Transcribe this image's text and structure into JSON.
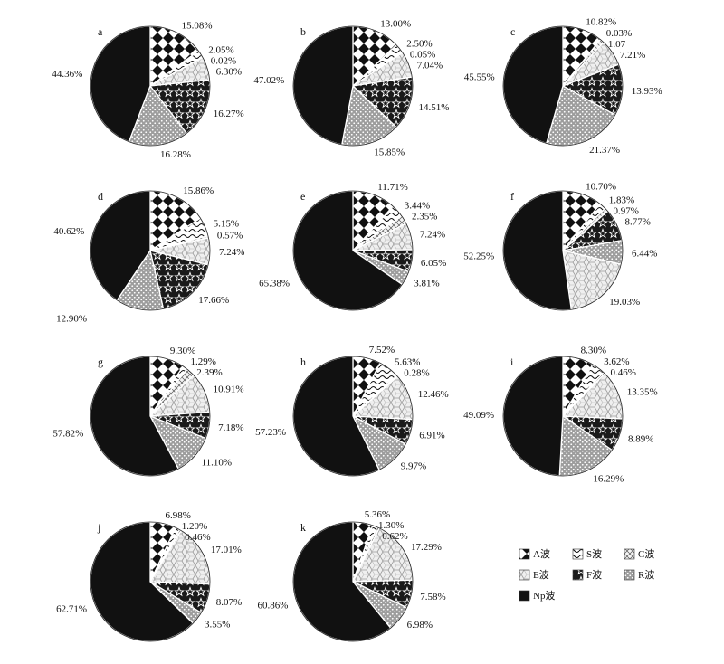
{
  "chart_data": [
    {
      "type": "pie",
      "panel": "a",
      "categories": [
        "A波",
        "S波",
        "C波",
        "E波",
        "F波",
        "R波",
        "Np波"
      ],
      "values": [
        15.08,
        2.05,
        0.02,
        6.3,
        16.27,
        16.28,
        44.36
      ],
      "labels": [
        "15.08%",
        "2.05%",
        "0.02%",
        "6.30%",
        "16.27%",
        "16.28%",
        "44.36%"
      ]
    },
    {
      "type": "pie",
      "panel": "b",
      "categories": [
        "A波",
        "S波",
        "C波",
        "E波",
        "F波",
        "R波",
        "Np波"
      ],
      "values": [
        13.0,
        2.5,
        0.05,
        7.04,
        14.51,
        15.85,
        47.02
      ],
      "labels": [
        "13.00%",
        "2.50%",
        "0.05%",
        "7.04%",
        "14.51%",
        "15.85%",
        "47.02%"
      ]
    },
    {
      "type": "pie",
      "panel": "c",
      "categories": [
        "A波",
        "S波",
        "C波",
        "E波",
        "F波",
        "R波",
        "Np波"
      ],
      "values": [
        10.82,
        0.03,
        1.07,
        7.21,
        13.93,
        21.37,
        45.55
      ],
      "labels": [
        "10.82%",
        "0.03%",
        "1.07",
        "7.21%",
        "13.93%",
        "21.37%",
        "45.55%"
      ]
    },
    {
      "type": "pie",
      "panel": "d",
      "categories": [
        "A波",
        "S波",
        "C波",
        "E波",
        "F波",
        "R波",
        "Np波"
      ],
      "values": [
        15.86,
        5.15,
        0.57,
        7.24,
        17.66,
        12.9,
        40.62
      ],
      "labels": [
        "15.86%",
        "5.15%",
        "0.57%",
        "7.24%",
        "17.66%",
        "12.90%",
        "40.62%"
      ]
    },
    {
      "type": "pie",
      "panel": "e",
      "categories": [
        "A波",
        "S波",
        "C波",
        "E波",
        "F波",
        "R波",
        "Np波"
      ],
      "values": [
        11.71,
        3.44,
        2.35,
        7.24,
        6.05,
        3.81,
        65.38
      ],
      "labels": [
        "11.71%",
        "3.44%",
        "2.35%",
        "7.24%",
        "6.05%",
        "3.81%",
        "65.38%"
      ]
    },
    {
      "type": "pie",
      "panel": "f",
      "categories": [
        "A波",
        "S波",
        "C波",
        "F波",
        "R波",
        "E波",
        "Np波"
      ],
      "values": [
        10.7,
        1.83,
        0.97,
        8.77,
        6.44,
        19.03,
        52.25
      ],
      "labels": [
        "10.70%",
        "1.83%",
        "0.97%",
        "8.77%",
        "6.44%",
        "19.03%",
        "52.25%"
      ]
    },
    {
      "type": "pie",
      "panel": "g",
      "categories": [
        "A波",
        "S波",
        "C波",
        "E波",
        "F波",
        "R波",
        "Np波"
      ],
      "values": [
        9.3,
        1.29,
        2.39,
        10.91,
        7.18,
        11.1,
        57.82
      ],
      "labels": [
        "9.30%",
        "1.29%",
        "2.39%",
        "10.91%",
        "7.18%",
        "11.10%",
        "57.82%"
      ]
    },
    {
      "type": "pie",
      "panel": "h",
      "categories": [
        "A波",
        "S波",
        "C波",
        "E波",
        "F波",
        "R波",
        "Np波"
      ],
      "values": [
        7.52,
        5.63,
        0.28,
        12.46,
        6.91,
        9.97,
        57.23
      ],
      "labels": [
        "7.52%",
        "5.63%",
        "0.28%",
        "12.46%",
        "6.91%",
        "9.97%",
        "57.23%"
      ]
    },
    {
      "type": "pie",
      "panel": "i",
      "categories": [
        "A波",
        "S波",
        "C波",
        "E波",
        "F波",
        "R波",
        "Np波"
      ],
      "values": [
        8.3,
        3.62,
        0.46,
        13.35,
        8.89,
        16.29,
        49.09
      ],
      "labels": [
        "8.30%",
        "3.62%",
        "0.46%",
        "13.35%",
        "8.89%",
        "16.29%",
        "49.09%"
      ]
    },
    {
      "type": "pie",
      "panel": "j",
      "categories": [
        "A波",
        "S波",
        "C波",
        "E波",
        "F波",
        "R波",
        "Np波"
      ],
      "values": [
        6.98,
        1.2,
        0.46,
        17.01,
        8.07,
        3.55,
        62.71
      ],
      "labels": [
        "6.98%",
        "1.20%",
        "0.46%",
        "17.01%",
        "8.07%",
        "3.55%",
        "62.71%"
      ]
    },
    {
      "type": "pie",
      "panel": "k",
      "categories": [
        "A波",
        "S波",
        "C波",
        "E波",
        "F波",
        "R波",
        "Np波"
      ],
      "values": [
        5.36,
        1.3,
        0.62,
        17.29,
        7.58,
        6.98,
        60.86
      ],
      "labels": [
        "5.36%",
        "1.30%",
        "0.62%",
        "17.29%",
        "7.58%",
        "6.98%",
        "60.86%"
      ]
    }
  ],
  "legend": {
    "placement": "bottom-right",
    "items": [
      {
        "key": "A",
        "label": "A波"
      },
      {
        "key": "S",
        "label": "S波"
      },
      {
        "key": "C",
        "label": "C波"
      },
      {
        "key": "E",
        "label": "E波"
      },
      {
        "key": "F",
        "label": "F波"
      },
      {
        "key": "R",
        "label": "R波"
      },
      {
        "key": "Np",
        "label": "Np波"
      }
    ]
  }
}
